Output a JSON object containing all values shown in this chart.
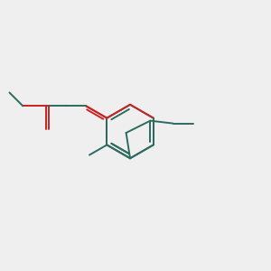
{
  "bg_color": "#efefef",
  "bond_color": "#2d6b5e",
  "oxygen_color": "#cc2222",
  "lw": 1.4
}
